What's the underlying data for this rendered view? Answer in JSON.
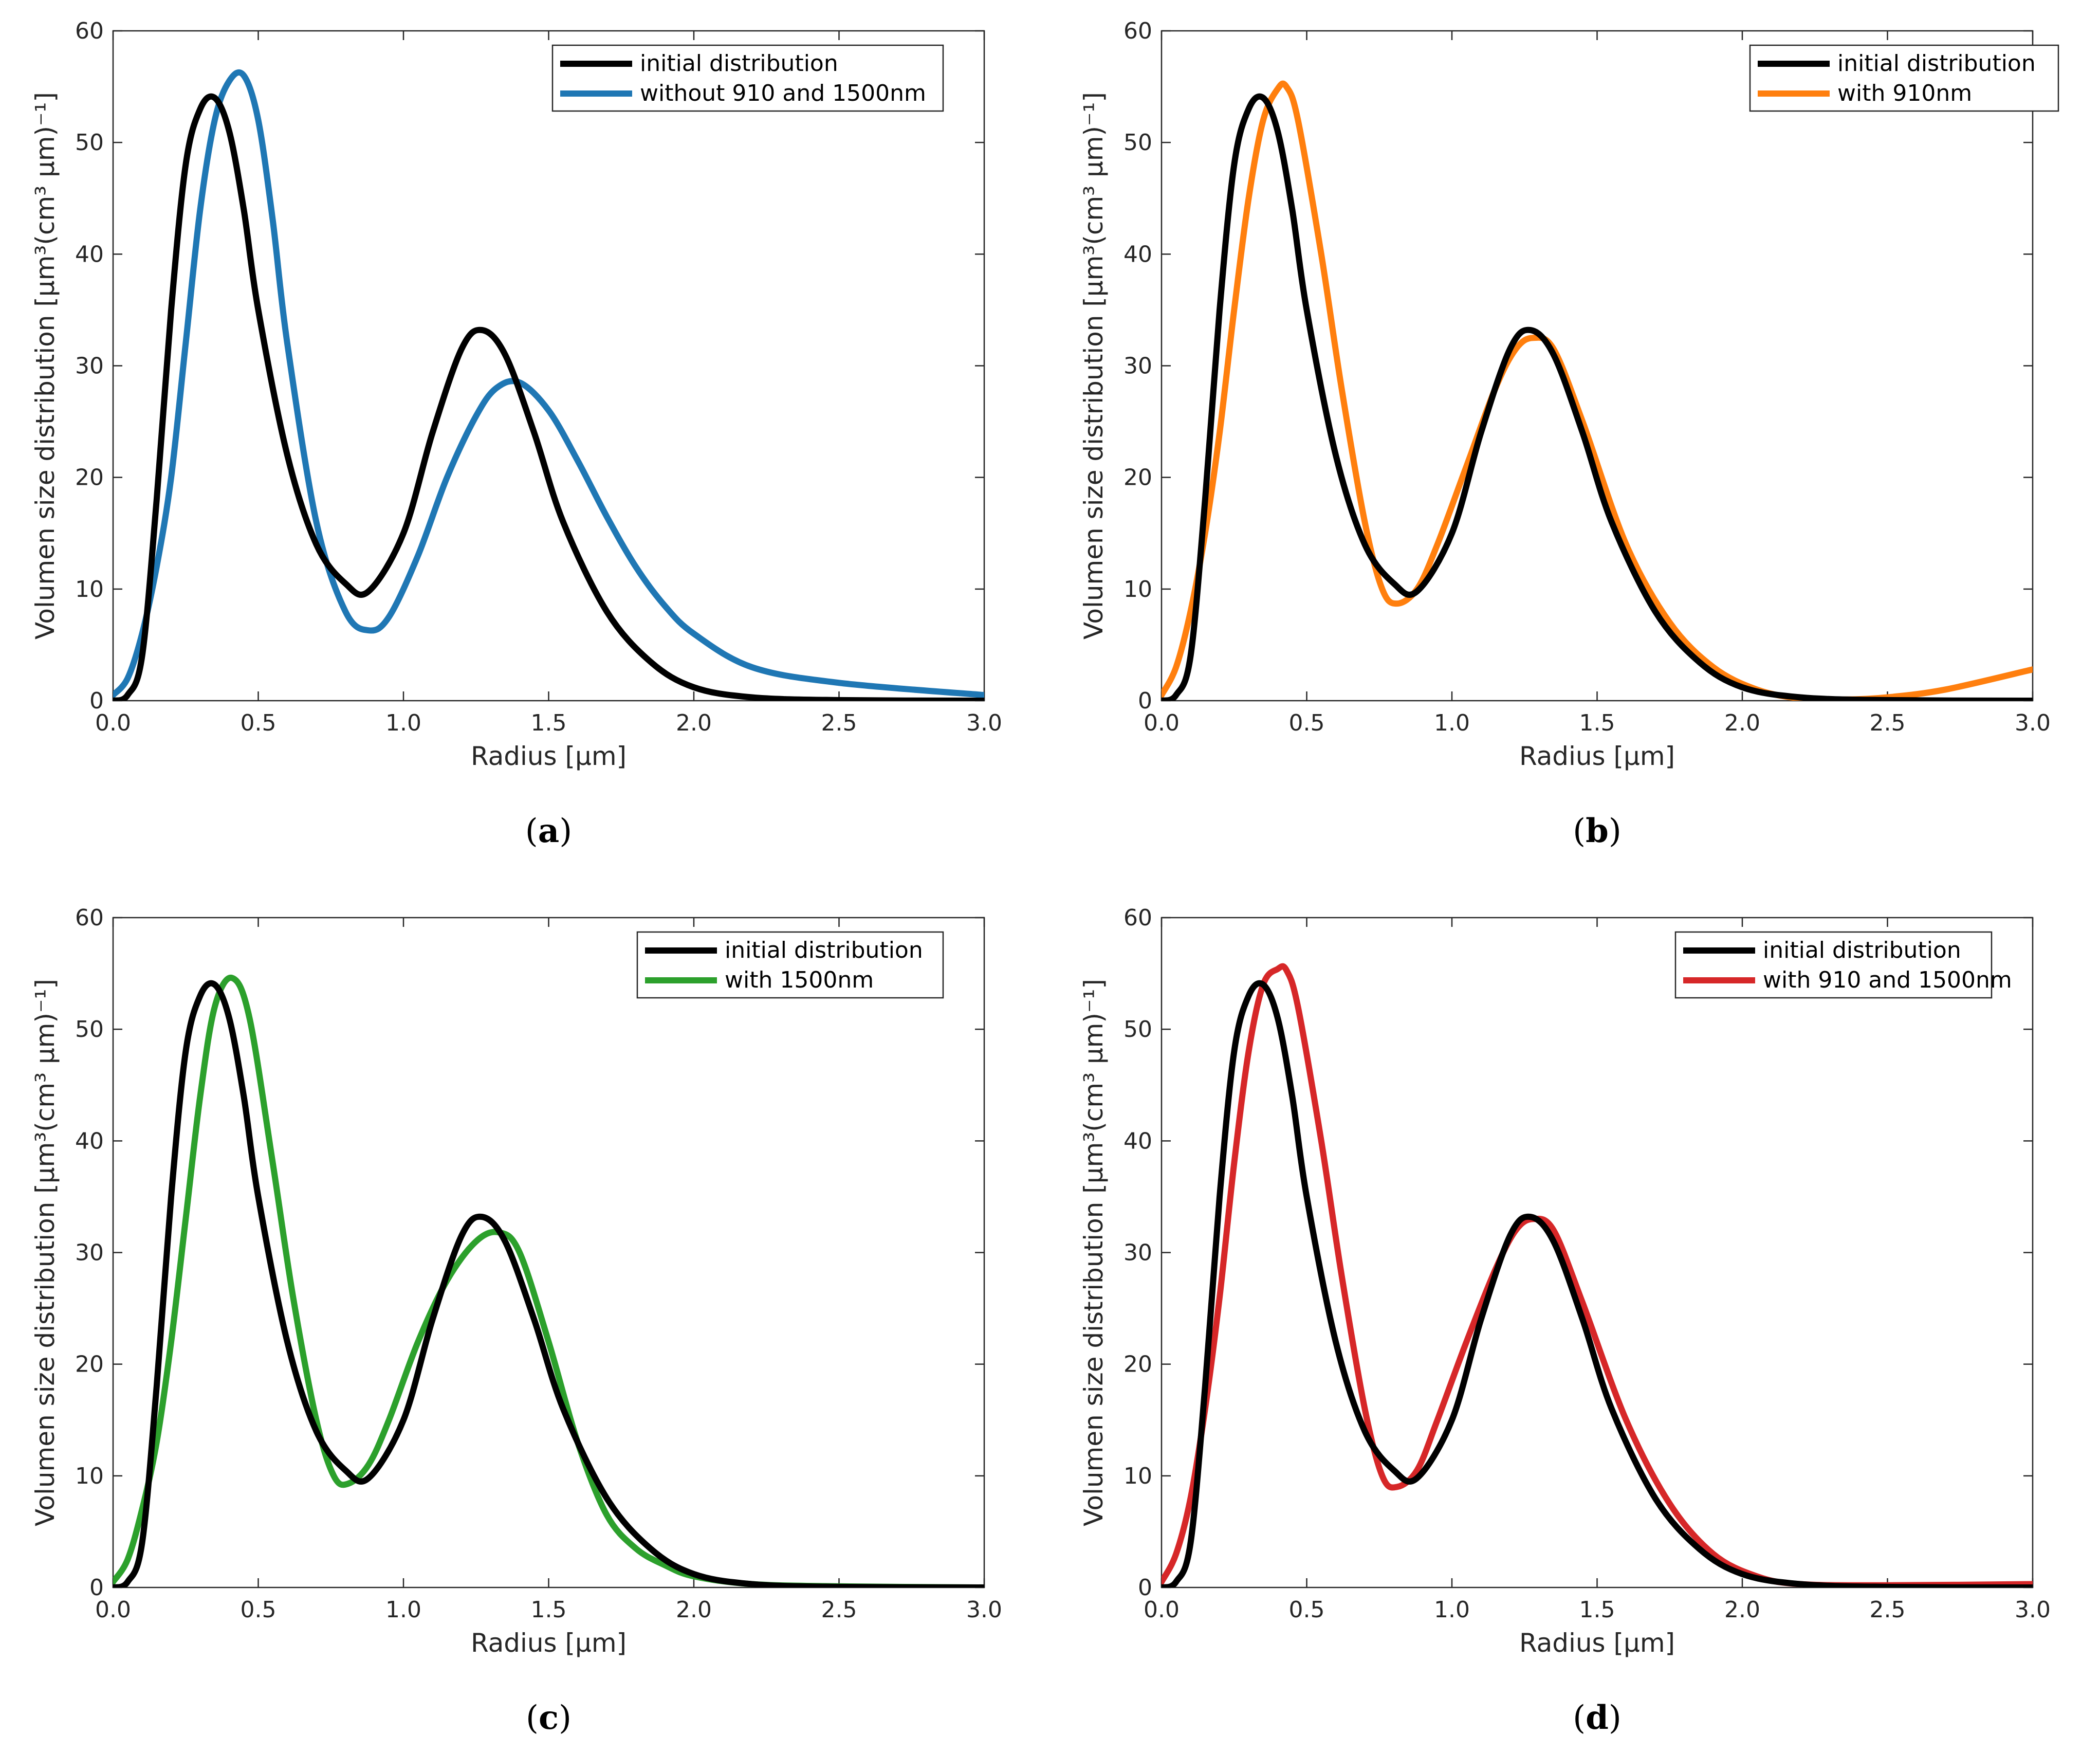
{
  "chart_data": [
    {
      "panel": "a",
      "type": "line",
      "caption": "a",
      "xlabel": "Radius [μm]",
      "ylabel": "Volumen size distribution [μm³(cm³ μm)⁻¹]",
      "xlim": [
        0,
        3
      ],
      "ylim": [
        0,
        60
      ],
      "xticks": [
        "0.0",
        "0.5",
        "1.0",
        "1.5",
        "2.0",
        "2.5",
        "3.0"
      ],
      "yticks": [
        "0",
        "10",
        "20",
        "30",
        "40",
        "50",
        "60"
      ],
      "legend_position": "top-right",
      "series": [
        {
          "name": "initial distribution",
          "color": "#000000",
          "x": [
            0,
            0.05,
            0.1,
            0.15,
            0.2,
            0.25,
            0.3,
            0.35,
            0.4,
            0.45,
            0.5,
            0.6,
            0.7,
            0.8,
            0.88,
            1.0,
            1.1,
            1.2,
            1.27,
            1.35,
            1.45,
            1.55,
            1.7,
            1.85,
            2.0,
            2.2,
            2.5,
            3.0
          ],
          "y": [
            0,
            0.5,
            4,
            18,
            35,
            48,
            53,
            54,
            51,
            44,
            35,
            22,
            14,
            10.5,
            9.8,
            15,
            24,
            31.5,
            33.2,
            31,
            24,
            16,
            8,
            3.5,
            1.2,
            0.3,
            0.05,
            0
          ]
        },
        {
          "name": "without 910 and 1500nm",
          "color": "#1f77b4",
          "x": [
            0,
            0.05,
            0.1,
            0.15,
            0.2,
            0.25,
            0.3,
            0.35,
            0.4,
            0.45,
            0.5,
            0.55,
            0.6,
            0.7,
            0.8,
            0.88,
            0.95,
            1.05,
            1.15,
            1.25,
            1.32,
            1.4,
            1.5,
            1.6,
            1.7,
            1.8,
            1.9,
            2.0,
            2.2,
            2.5,
            3.0
          ],
          "y": [
            0.5,
            2,
            6,
            12,
            20,
            32,
            44,
            52,
            55.5,
            56,
            52,
            43,
            32,
            16,
            8,
            6.3,
            7.5,
            13,
            20,
            25.5,
            28,
            28.5,
            26,
            21.5,
            16.5,
            12,
            8.5,
            6,
            3,
            1.6,
            0.5
          ]
        }
      ]
    },
    {
      "panel": "b",
      "type": "line",
      "caption": "b",
      "xlabel": "Radius [μm]",
      "ylabel": "Volumen size distribution [μm³(cm³ μm)⁻¹]",
      "xlim": [
        0,
        3
      ],
      "ylim": [
        0,
        60
      ],
      "xticks": [
        "0.0",
        "0.5",
        "1.0",
        "1.5",
        "2.0",
        "2.5",
        "3.0"
      ],
      "yticks": [
        "0",
        "10",
        "20",
        "30",
        "40",
        "50",
        "60"
      ],
      "legend_position": "top-right",
      "series": [
        {
          "name": "initial distribution",
          "color": "#000000",
          "x": [
            0,
            0.05,
            0.1,
            0.15,
            0.2,
            0.25,
            0.3,
            0.35,
            0.4,
            0.45,
            0.5,
            0.6,
            0.7,
            0.8,
            0.88,
            1.0,
            1.1,
            1.2,
            1.27,
            1.35,
            1.45,
            1.55,
            1.7,
            1.85,
            2.0,
            2.2,
            2.5,
            3.0
          ],
          "y": [
            0,
            0.5,
            4,
            18,
            35,
            48,
            53,
            54,
            51,
            44,
            35,
            22,
            14,
            10.5,
            9.8,
            15,
            24,
            31.5,
            33.2,
            31,
            24,
            16,
            8,
            3.5,
            1.2,
            0.3,
            0.05,
            0
          ]
        },
        {
          "name": "with 910nm",
          "color": "#ff7f0e",
          "x": [
            0,
            0.05,
            0.1,
            0.15,
            0.2,
            0.25,
            0.3,
            0.35,
            0.4,
            0.43,
            0.47,
            0.55,
            0.62,
            0.7,
            0.76,
            0.81,
            0.88,
            0.95,
            1.05,
            1.15,
            1.22,
            1.28,
            1.35,
            1.45,
            1.6,
            1.75,
            1.9,
            2.05,
            2.2,
            2.35,
            2.5,
            2.7,
            3.0
          ],
          "y": [
            0.5,
            3,
            8,
            15,
            24,
            35,
            45,
            52,
            54.8,
            55,
            52,
            40,
            28,
            16,
            10,
            8.7,
            10,
            14,
            21,
            28,
            31.5,
            32.5,
            31.5,
            25,
            14,
            7,
            3,
            1,
            0.2,
            0.1,
            0.3,
            1,
            2.8
          ]
        }
      ]
    },
    {
      "panel": "c",
      "type": "line",
      "caption": "c",
      "xlabel": "Radius [μm]",
      "ylabel": "Volumen size distribution [μm³(cm³ μm)⁻¹]",
      "xlim": [
        0,
        3
      ],
      "ylim": [
        0,
        60
      ],
      "xticks": [
        "0.0",
        "0.5",
        "1.0",
        "1.5",
        "2.0",
        "2.5",
        "3.0"
      ],
      "yticks": [
        "0",
        "10",
        "20",
        "30",
        "40",
        "50",
        "60"
      ],
      "legend_position": "top-right",
      "series": [
        {
          "name": "initial distribution",
          "color": "#000000",
          "x": [
            0,
            0.05,
            0.1,
            0.15,
            0.2,
            0.25,
            0.3,
            0.35,
            0.4,
            0.45,
            0.5,
            0.6,
            0.7,
            0.8,
            0.88,
            1.0,
            1.1,
            1.2,
            1.27,
            1.35,
            1.45,
            1.55,
            1.7,
            1.85,
            2.0,
            2.2,
            2.5,
            3.0
          ],
          "y": [
            0,
            0.5,
            4,
            18,
            35,
            48,
            53,
            54,
            51,
            44,
            35,
            22,
            14,
            10.5,
            9.8,
            15,
            24,
            31.5,
            33.2,
            31,
            24,
            16,
            8,
            3.5,
            1.2,
            0.3,
            0.05,
            0
          ]
        },
        {
          "name": "with 1500nm",
          "color": "#2ca02c",
          "x": [
            0,
            0.05,
            0.1,
            0.15,
            0.2,
            0.25,
            0.3,
            0.35,
            0.41,
            0.47,
            0.55,
            0.62,
            0.7,
            0.76,
            0.81,
            0.88,
            0.95,
            1.05,
            1.15,
            1.25,
            1.33,
            1.4,
            1.5,
            1.6,
            1.7,
            1.8,
            1.9,
            2.0,
            2.2,
            2.5,
            3.0
          ],
          "y": [
            0.5,
            2.5,
            7,
            13,
            22,
            33,
            44,
            52,
            54.6,
            51,
            38,
            26,
            15,
            10,
            9.3,
            11,
            15,
            22,
            27.5,
            31,
            31.8,
            30,
            22,
            13,
            6.5,
            3.5,
            2,
            1,
            0.3,
            0.1,
            0
          ]
        }
      ]
    },
    {
      "panel": "d",
      "type": "line",
      "caption": "d",
      "xlabel": "Radius [μm]",
      "ylabel": "Volumen size distribution [μm³(cm³ μm)⁻¹]",
      "xlim": [
        0,
        3
      ],
      "ylim": [
        0,
        60
      ],
      "xticks": [
        "0.0",
        "0.5",
        "1.0",
        "1.5",
        "2.0",
        "2.5",
        "3.0"
      ],
      "yticks": [
        "0",
        "10",
        "20",
        "30",
        "40",
        "50",
        "60"
      ],
      "legend_position": "top-right",
      "series": [
        {
          "name": "initial distribution",
          "color": "#000000",
          "x": [
            0,
            0.05,
            0.1,
            0.15,
            0.2,
            0.25,
            0.3,
            0.35,
            0.4,
            0.45,
            0.5,
            0.6,
            0.7,
            0.8,
            0.88,
            1.0,
            1.1,
            1.2,
            1.27,
            1.35,
            1.45,
            1.55,
            1.7,
            1.85,
            2.0,
            2.2,
            2.5,
            3.0
          ],
          "y": [
            0,
            0.5,
            4,
            18,
            35,
            48,
            53,
            54,
            51,
            44,
            35,
            22,
            14,
            10.5,
            9.8,
            15,
            24,
            31.5,
            33.2,
            31,
            24,
            16,
            8,
            3.5,
            1.2,
            0.3,
            0.05,
            0
          ]
        },
        {
          "name": "with 910 and 1500nm",
          "color": "#d62728",
          "x": [
            0,
            0.05,
            0.1,
            0.15,
            0.2,
            0.25,
            0.3,
            0.35,
            0.4,
            0.43,
            0.47,
            0.55,
            0.62,
            0.7,
            0.76,
            0.81,
            0.88,
            0.95,
            1.05,
            1.15,
            1.22,
            1.28,
            1.35,
            1.45,
            1.6,
            1.75,
            1.9,
            2.05,
            2.2,
            2.5,
            3.0
          ],
          "y": [
            0.5,
            3,
            8,
            16,
            26,
            38,
            48,
            54,
            55.4,
            55.3,
            52,
            40,
            28,
            16,
            10,
            9,
            10.5,
            15,
            22,
            28.5,
            32,
            33,
            32,
            25.5,
            15,
            7.5,
            3,
            1,
            0.3,
            0.2,
            0.3
          ]
        }
      ]
    }
  ]
}
